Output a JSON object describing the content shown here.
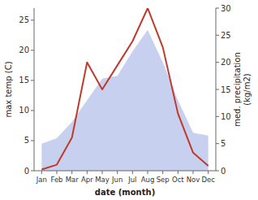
{
  "chart_data": {
    "type": "line",
    "categories": [
      "Jan",
      "Feb",
      "Mar",
      "Apr",
      "May",
      "Jun",
      "Jul",
      "Aug",
      "Sep",
      "Oct",
      "Nov",
      "Dec"
    ],
    "xlabel": "date (month)",
    "ylabel": "max temp (C)",
    "y2label": "med. precipitation\n(kg/m2)",
    "series": [
      {
        "type": "area",
        "axis": "y2",
        "color": "#c8d0f0",
        "values": [
          5.0,
          6.0,
          9.0,
          13.0,
          17.0,
          17.5,
          22.0,
          26.0,
          20.0,
          13.0,
          7.0,
          6.5
        ]
      },
      {
        "type": "line",
        "color": "#c0392b",
        "values": [
          0.2,
          1.0,
          5.5,
          18.0,
          13.5,
          17.5,
          21.5,
          27.0,
          20.5,
          9.5,
          3.0,
          0.8
        ]
      }
    ],
    "ylim": [
      0,
      27
    ],
    "yticks": [
      0,
      5,
      10,
      15,
      20,
      25
    ],
    "y2lim": [
      0,
      30
    ],
    "y2ticks": [
      0,
      5,
      10,
      15,
      20,
      25,
      30
    ],
    "grid": false
  }
}
